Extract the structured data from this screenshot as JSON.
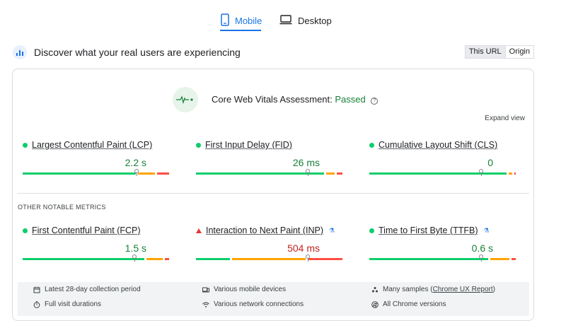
{
  "tabs": {
    "mobile_label": "Mobile",
    "desktop_label": "Desktop"
  },
  "header": {
    "title": "Discover what your real users are experiencing",
    "toggle_url": "This URL",
    "toggle_origin": "Origin"
  },
  "assessment": {
    "label": "Core Web Vitals Assessment: ",
    "status": "Passed",
    "help": "?",
    "expand_view": "Expand view"
  },
  "other_metrics_label": "OTHER NOTABLE METRICS",
  "metrics": [
    {
      "name": "Largest Contentful Paint (LCP)",
      "value": "2.2 s",
      "status": "good",
      "segments": {
        "good": 0.76,
        "needs_improvement": 0.13,
        "poor": 0.09
      },
      "marker_fraction": 0.75
    },
    {
      "name": "First Input Delay (FID)",
      "value": "26 ms",
      "status": "good",
      "segments": {
        "good": 0.86,
        "needs_improvement": 0.07,
        "poor": 0.05
      },
      "marker_fraction": 0.74
    },
    {
      "name": "Cumulative Layout Shift (CLS)",
      "value": "0",
      "status": "good",
      "segments": {
        "good": 0.92,
        "needs_improvement": 0.04,
        "poor": 0.02
      },
      "marker_fraction": 0.74
    },
    {
      "name": "First Contentful Paint (FCP)",
      "value": "1.5 s",
      "status": "good",
      "segments": {
        "good": 0.82,
        "needs_improvement": 0.12,
        "poor": 0.04
      },
      "marker_fraction": 0.74
    },
    {
      "name": "Interaction to Next Paint (INP)",
      "value": "504 ms",
      "status": "poor",
      "lab": true,
      "segments": {
        "good": 0.24,
        "needs_improvement": 0.5,
        "poor": 0.24
      },
      "marker_fraction": 0.74
    },
    {
      "name": "Time to First Byte (TTFB)",
      "value": "0.6 s",
      "status": "good",
      "lab": true,
      "segments": {
        "good": 0.8,
        "needs_improvement": 0.14,
        "poor": 0.04
      },
      "marker_fraction": 0.74
    }
  ],
  "info": {
    "period": "Latest 28-day collection period",
    "durations": "Full visit durations",
    "devices": "Various mobile devices",
    "network": "Various network connections",
    "samples_prefix": "Many samples (",
    "samples_link": "Chrome UX Report",
    "samples_suffix": ")",
    "versions": "All Chrome versions"
  },
  "colors": {
    "accent": "#1a73e8",
    "good": "#0cce6b",
    "needs_improvement": "#ffa400",
    "poor": "#ff4e42",
    "pass_text": "#188038",
    "poor_text": "#c5221f"
  }
}
